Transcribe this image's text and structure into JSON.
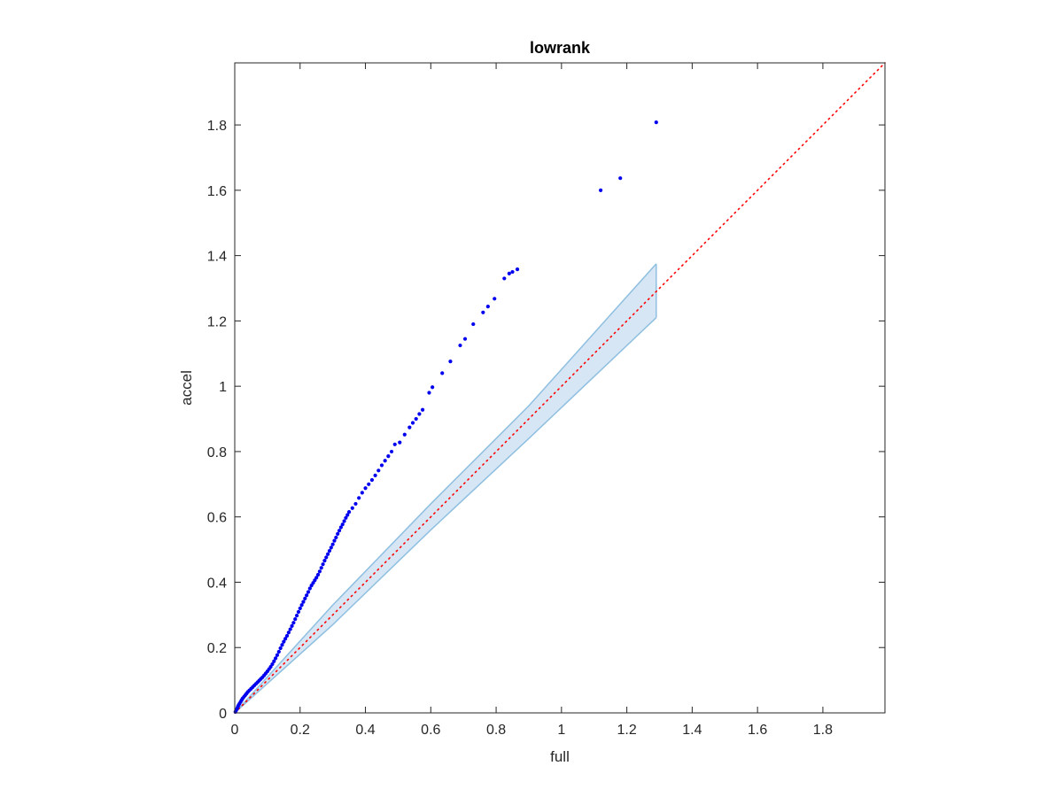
{
  "chart_data": {
    "type": "scatter",
    "title": "lowrank",
    "xlabel": "full",
    "ylabel": "accel",
    "xlim": [
      0,
      1.99
    ],
    "ylim": [
      0,
      1.99
    ],
    "xticks": [
      0,
      0.2,
      0.4,
      0.6,
      0.8,
      1,
      1.2,
      1.4,
      1.6,
      1.8
    ],
    "xtick_labels": [
      "0",
      "0.2",
      "0.4",
      "0.6",
      "0.8",
      "1",
      "1.2",
      "1.4",
      "1.6",
      "1.8"
    ],
    "yticks": [
      0,
      0.2,
      0.4,
      0.6,
      0.8,
      1,
      1.2,
      1.4,
      1.6,
      1.8
    ],
    "ytick_labels": [
      "0",
      "0.2",
      "0.4",
      "0.6",
      "0.8",
      "1",
      "1.2",
      "1.4",
      "1.6",
      "1.8"
    ],
    "grid": false,
    "box": true,
    "colors": {
      "points": "#0000ee",
      "reference_line": "#ff0000",
      "band_fill": "#d6e6f5",
      "band_edge": "#8fbfe0",
      "axis": "#262626"
    },
    "reference_line": {
      "style": "dotted",
      "x": [
        0,
        1.99
      ],
      "y": [
        0,
        1.99
      ]
    },
    "confidence_band": {
      "x": [
        0,
        0.3,
        0.6,
        0.9,
        1.29
      ],
      "upper": [
        0,
        0.33,
        0.64,
        0.94,
        1.375
      ],
      "lower": [
        0,
        0.27,
        0.56,
        0.84,
        1.21
      ]
    },
    "points": [
      [
        0.002,
        0.003
      ],
      [
        0.004,
        0.007
      ],
      [
        0.006,
        0.011
      ],
      [
        0.008,
        0.015
      ],
      [
        0.01,
        0.02
      ],
      [
        0.012,
        0.024
      ],
      [
        0.015,
        0.029
      ],
      [
        0.018,
        0.034
      ],
      [
        0.021,
        0.039
      ],
      [
        0.024,
        0.044
      ],
      [
        0.028,
        0.049
      ],
      [
        0.032,
        0.054
      ],
      [
        0.036,
        0.059
      ],
      [
        0.04,
        0.064
      ],
      [
        0.045,
        0.069
      ],
      [
        0.05,
        0.074
      ],
      [
        0.055,
        0.079
      ],
      [
        0.06,
        0.084
      ],
      [
        0.065,
        0.089
      ],
      [
        0.07,
        0.094
      ],
      [
        0.075,
        0.099
      ],
      [
        0.08,
        0.104
      ],
      [
        0.085,
        0.109
      ],
      [
        0.09,
        0.115
      ],
      [
        0.095,
        0.121
      ],
      [
        0.1,
        0.127
      ],
      [
        0.105,
        0.134
      ],
      [
        0.11,
        0.141
      ],
      [
        0.115,
        0.149
      ],
      [
        0.12,
        0.158
      ],
      [
        0.125,
        0.167
      ],
      [
        0.13,
        0.177
      ],
      [
        0.135,
        0.187
      ],
      [
        0.14,
        0.198
      ],
      [
        0.145,
        0.208
      ],
      [
        0.15,
        0.218
      ],
      [
        0.155,
        0.227
      ],
      [
        0.16,
        0.236
      ],
      [
        0.165,
        0.246
      ],
      [
        0.17,
        0.256
      ],
      [
        0.175,
        0.266
      ],
      [
        0.18,
        0.276
      ],
      [
        0.185,
        0.287
      ],
      [
        0.19,
        0.298
      ],
      [
        0.195,
        0.309
      ],
      [
        0.2,
        0.32
      ],
      [
        0.205,
        0.33
      ],
      [
        0.21,
        0.34
      ],
      [
        0.215,
        0.35
      ],
      [
        0.22,
        0.36
      ],
      [
        0.225,
        0.37
      ],
      [
        0.23,
        0.381
      ],
      [
        0.235,
        0.39
      ],
      [
        0.24,
        0.398
      ],
      [
        0.245,
        0.406
      ],
      [
        0.25,
        0.414
      ],
      [
        0.255,
        0.423
      ],
      [
        0.26,
        0.433
      ],
      [
        0.265,
        0.444
      ],
      [
        0.27,
        0.455
      ],
      [
        0.275,
        0.466
      ],
      [
        0.28,
        0.476
      ],
      [
        0.285,
        0.486
      ],
      [
        0.29,
        0.496
      ],
      [
        0.295,
        0.506
      ],
      [
        0.3,
        0.516
      ],
      [
        0.305,
        0.527
      ],
      [
        0.31,
        0.537
      ],
      [
        0.315,
        0.548
      ],
      [
        0.32,
        0.558
      ],
      [
        0.325,
        0.568
      ],
      [
        0.33,
        0.577
      ],
      [
        0.335,
        0.587
      ],
      [
        0.34,
        0.597
      ],
      [
        0.345,
        0.606
      ],
      [
        0.35,
        0.615
      ],
      [
        0.36,
        0.627
      ],
      [
        0.37,
        0.64
      ],
      [
        0.38,
        0.658
      ],
      [
        0.39,
        0.674
      ],
      [
        0.4,
        0.688
      ],
      [
        0.41,
        0.7
      ],
      [
        0.42,
        0.713
      ],
      [
        0.43,
        0.727
      ],
      [
        0.44,
        0.742
      ],
      [
        0.45,
        0.758
      ],
      [
        0.46,
        0.772
      ],
      [
        0.47,
        0.786
      ],
      [
        0.48,
        0.8
      ],
      [
        0.49,
        0.822
      ],
      [
        0.505,
        0.828
      ],
      [
        0.52,
        0.852
      ],
      [
        0.535,
        0.874
      ],
      [
        0.545,
        0.888
      ],
      [
        0.555,
        0.9
      ],
      [
        0.565,
        0.915
      ],
      [
        0.575,
        0.928
      ],
      [
        0.595,
        0.98
      ],
      [
        0.605,
        0.997
      ],
      [
        0.635,
        1.04
      ],
      [
        0.66,
        1.076
      ],
      [
        0.69,
        1.125
      ],
      [
        0.705,
        1.145
      ],
      [
        0.73,
        1.19
      ],
      [
        0.76,
        1.226
      ],
      [
        0.775,
        1.244
      ],
      [
        0.795,
        1.268
      ],
      [
        0.825,
        1.33
      ],
      [
        0.84,
        1.345
      ],
      [
        0.85,
        1.35
      ],
      [
        0.865,
        1.358
      ],
      [
        1.12,
        1.6
      ],
      [
        1.18,
        1.637
      ],
      [
        1.29,
        1.808
      ]
    ]
  }
}
